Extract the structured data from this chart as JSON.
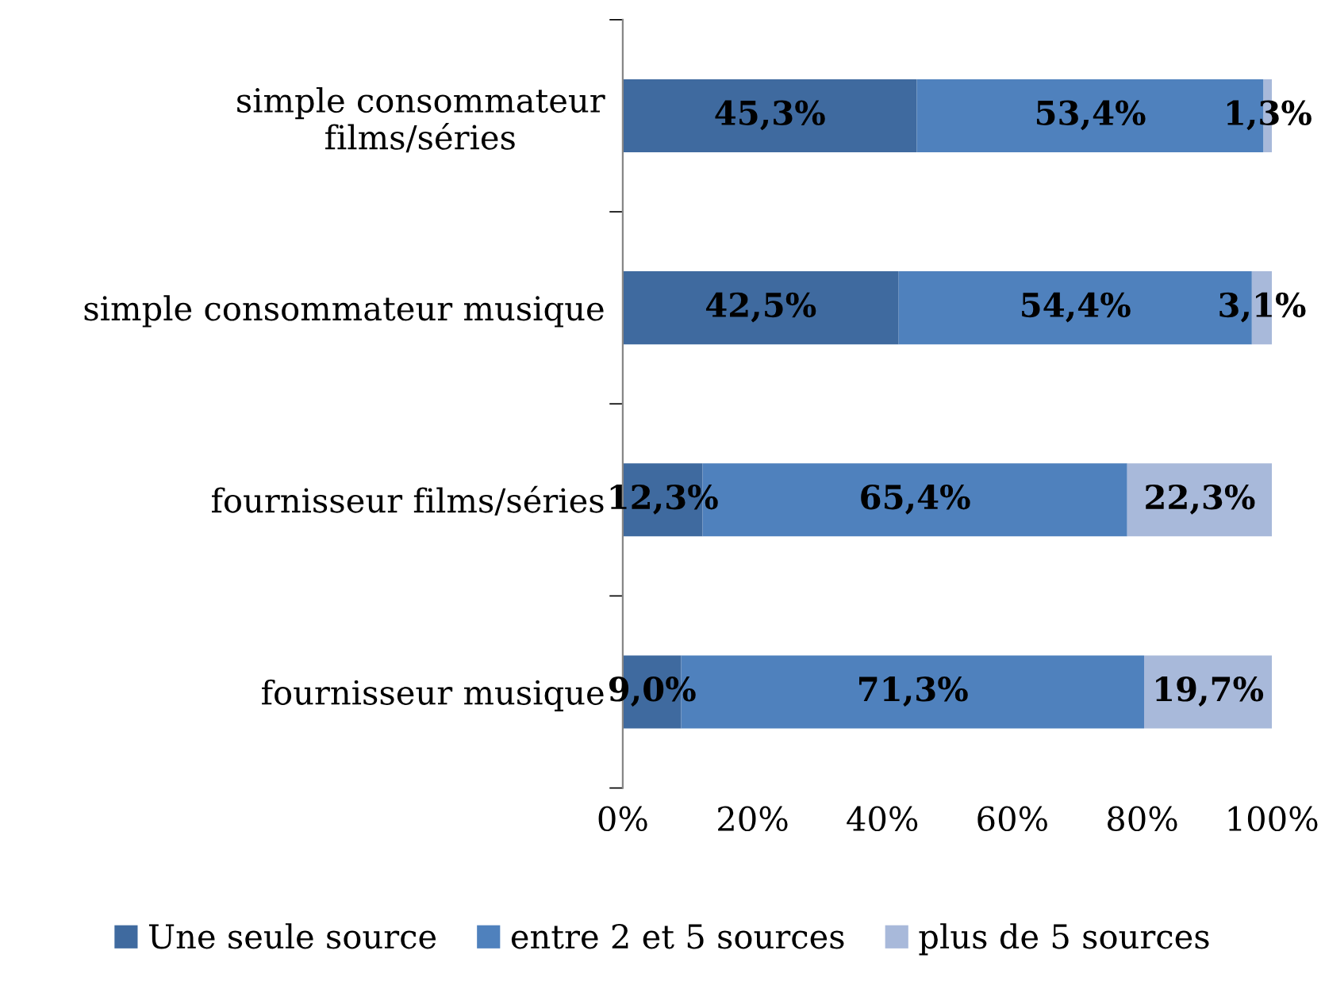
{
  "chart_data": {
    "type": "bar",
    "orientation": "horizontal",
    "stacked": true,
    "categories": [
      "simple consommateur\nfilms/séries",
      "simple consommateur musique",
      "fournisseur films/séries",
      "fournisseur musique"
    ],
    "series": [
      {
        "name": "Une seule source",
        "color": "#3f6a9f",
        "values": [
          45.3,
          42.5,
          12.3,
          9.0
        ],
        "value_labels": [
          "45,3%",
          "42,5%",
          "12,3%",
          "9,0%"
        ]
      },
      {
        "name": "entre 2 et 5 sources",
        "color": "#4f81bd",
        "values": [
          53.4,
          54.4,
          65.4,
          71.3
        ],
        "value_labels": [
          "53,4%",
          "54,4%",
          "65,4%",
          "71,3%"
        ]
      },
      {
        "name": "plus de 5 sources",
        "color": "#a8b9da",
        "values": [
          1.3,
          3.1,
          22.3,
          19.7
        ],
        "value_labels": [
          "1,3%",
          "3,1%",
          "22,3%",
          "19,7%"
        ]
      }
    ],
    "xlim": [
      0,
      100
    ],
    "xticks": [
      {
        "value": 0,
        "label": "0%"
      },
      {
        "value": 20,
        "label": "20%"
      },
      {
        "value": 40,
        "label": "40%"
      },
      {
        "value": 60,
        "label": "60%"
      },
      {
        "value": 80,
        "label": "80%"
      },
      {
        "value": 100,
        "label": "100%"
      }
    ],
    "grid": false,
    "legend": "bottom"
  }
}
